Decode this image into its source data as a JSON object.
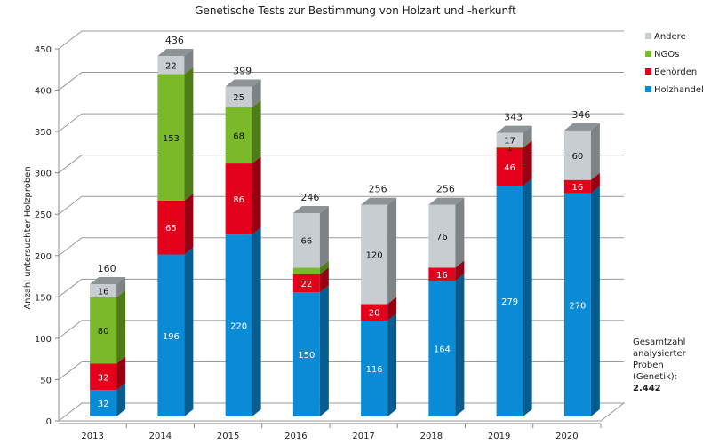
{
  "chart_data": {
    "type": "bar",
    "stacked": true,
    "style": "3d",
    "title": "Genetische Tests zur Bestimmung von Holzart und -herkunft",
    "xlabel": "",
    "ylabel": "Anzahl untersuchter Holzproben",
    "ylim": [
      0,
      450
    ],
    "yticks": [
      0,
      50,
      100,
      150,
      200,
      250,
      300,
      350,
      400,
      450
    ],
    "grid": true,
    "legend_position": "right",
    "categories": [
      "2013",
      "2014",
      "2015",
      "2016",
      "2017",
      "2018",
      "2019",
      "2020"
    ],
    "series": [
      {
        "name": "Holzhandel",
        "color": "#0a8bd6",
        "side_color": "#075d8f",
        "label_color": "#ffffff",
        "values": [
          32,
          196,
          220,
          150,
          116,
          164,
          279,
          270
        ],
        "show_labels": [
          true,
          true,
          true,
          true,
          true,
          true,
          true,
          true
        ]
      },
      {
        "name": "Behörden",
        "color": "#e2001a",
        "side_color": "#970012",
        "label_color": "#ffffff",
        "values": [
          32,
          65,
          86,
          22,
          20,
          16,
          46,
          16
        ],
        "show_labels": [
          true,
          true,
          true,
          true,
          true,
          true,
          true,
          true
        ]
      },
      {
        "name": "NGOs",
        "color": "#7ab929",
        "side_color": "#4f7c19",
        "label_color": "#111111",
        "values": [
          80,
          153,
          68,
          8,
          0,
          0,
          1,
          0
        ],
        "show_labels": [
          true,
          true,
          true,
          false,
          false,
          false,
          true,
          false
        ]
      },
      {
        "name": "Andere",
        "color": "#c7cdd1",
        "side_color": "#7e8386",
        "label_color": "#111111",
        "values": [
          16,
          22,
          25,
          66,
          120,
          76,
          17,
          60
        ],
        "show_labels": [
          true,
          true,
          true,
          true,
          true,
          true,
          true,
          true
        ]
      }
    ],
    "totals": [
      160,
      436,
      399,
      246,
      256,
      256,
      343,
      346
    ],
    "legend_order": [
      "Andere",
      "NGOs",
      "Behörden",
      "Holzhandel"
    ]
  },
  "note": {
    "lines": [
      "Gesamtzahl",
      "analysierter",
      "Proben",
      "(Genetik):"
    ],
    "total": "2.442"
  }
}
